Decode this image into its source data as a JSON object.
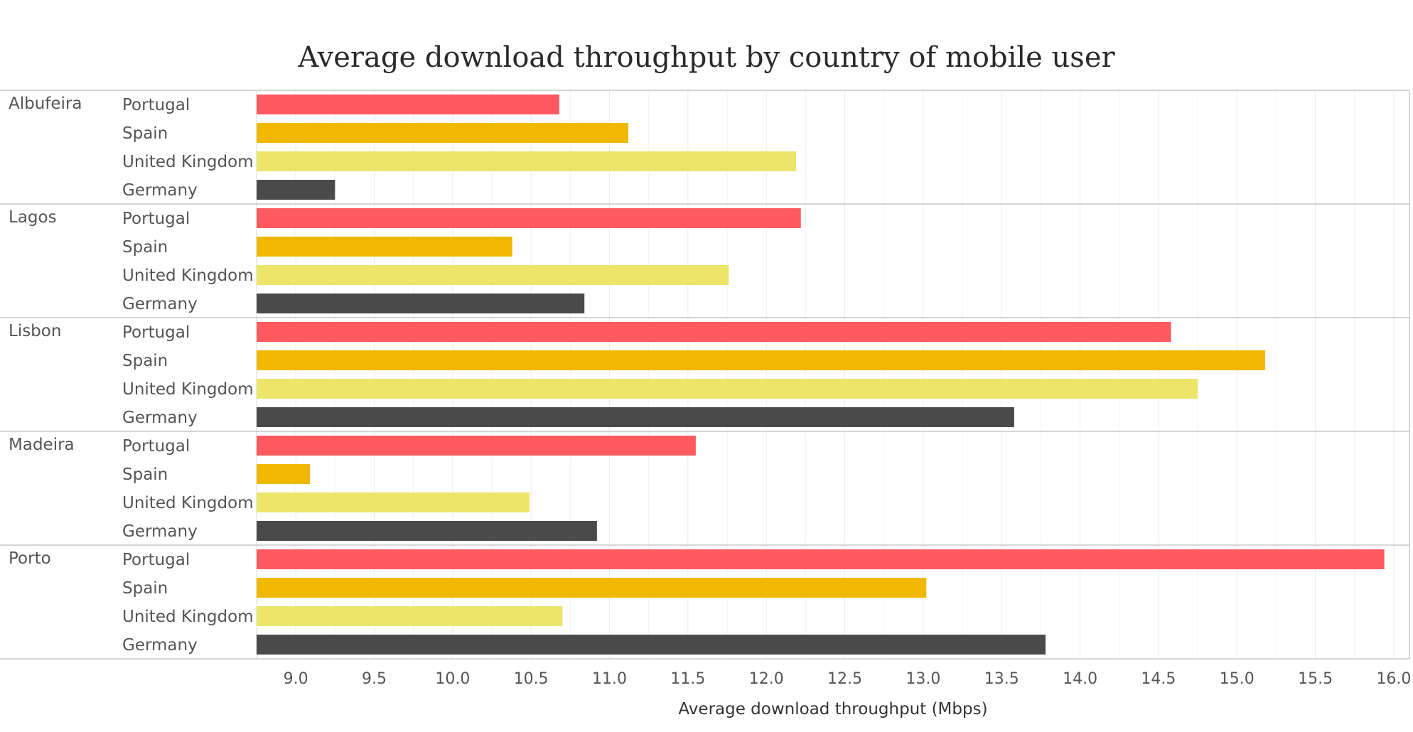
{
  "chart_data": {
    "type": "bar",
    "orientation": "horizontal",
    "title": "Average download throughput by country of mobile user",
    "xlabel": "Average download throughput (Mbps)",
    "ylabel": "",
    "xlim": [
      8.75,
      16.1
    ],
    "x_ticks": [
      "9.0",
      "9.5",
      "10.0",
      "10.5",
      "11.0",
      "11.5",
      "12.0",
      "12.5",
      "13.0",
      "13.5",
      "14.0",
      "14.5",
      "15.0",
      "15.5",
      "16.0"
    ],
    "grid": true,
    "legend": "none",
    "colors": {
      "Portugal": "#ff5a5f",
      "Spain": "#f0b800",
      "United Kingdom": "#ede56a",
      "Germany": "#4a4a4a"
    },
    "categories": [
      "Portugal",
      "Spain",
      "United Kingdom",
      "Germany"
    ],
    "groups": [
      {
        "name": "Albufeira",
        "values": [
          10.68,
          11.12,
          12.19,
          9.25
        ]
      },
      {
        "name": "Lagos",
        "values": [
          12.22,
          10.38,
          11.76,
          10.84
        ]
      },
      {
        "name": "Lisbon",
        "values": [
          14.58,
          15.18,
          14.75,
          13.58
        ]
      },
      {
        "name": "Madeira",
        "values": [
          11.55,
          9.09,
          10.49,
          10.92
        ]
      },
      {
        "name": "Porto",
        "values": [
          15.94,
          13.02,
          10.7,
          13.78
        ]
      }
    ]
  }
}
